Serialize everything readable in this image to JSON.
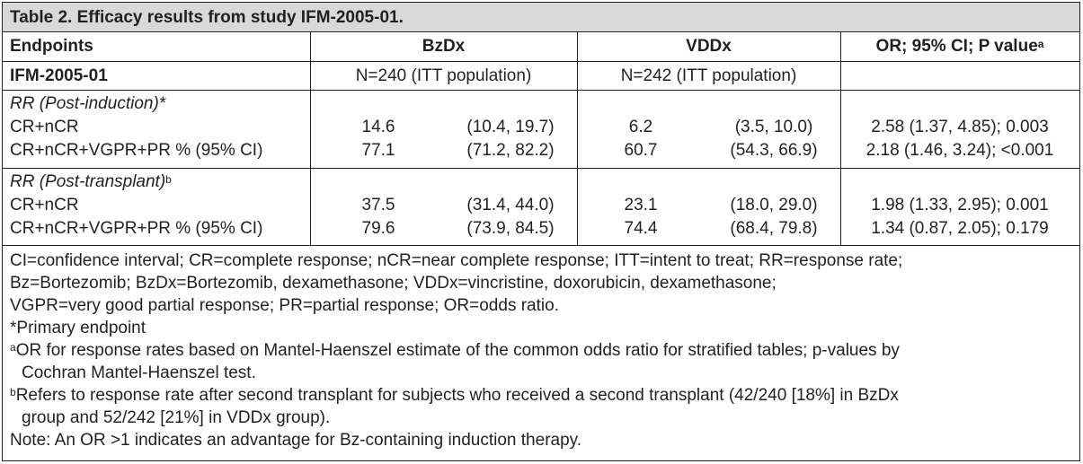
{
  "caption": "Table 2. Efficacy results from study IFM-2005-01.",
  "header": {
    "endpoints": "Endpoints",
    "bzdx": "BzDx",
    "vddx": "VDDx",
    "or": "OR; 95% CI; P value",
    "or_sup": "a"
  },
  "study_row": {
    "label": "IFM-2005-01",
    "bzdx": "N=240 (ITT population)",
    "vddx": "N=242 (ITT population)"
  },
  "sections": [
    {
      "title": "RR (Post-induction)",
      "title_suffix": "*",
      "rows": [
        {
          "label": "CR+nCR",
          "bz_val": "14.6",
          "bz_ci": "(10.4, 19.7)",
          "vd_val": "6.2",
          "vd_ci": "(3.5, 10.0)",
          "or": "2.58 (1.37, 4.85); 0.003"
        },
        {
          "label": "CR+nCR+VGPR+PR % (95% CI)",
          "bz_val": "77.1",
          "bz_ci": "(71.2, 82.2)",
          "vd_val": "60.7",
          "vd_ci": "(54.3, 66.9)",
          "or": "2.18 (1.46, 3.24); <0.001"
        }
      ]
    },
    {
      "title": "RR (Post-transplant)",
      "title_suffix": "b",
      "rows": [
        {
          "label": "CR+nCR",
          "bz_val": "37.5",
          "bz_ci": "(31.4, 44.0)",
          "vd_val": "23.1",
          "vd_ci": "(18.0, 29.0)",
          "or": "1.98 (1.33, 2.95); 0.001"
        },
        {
          "label": "CR+nCR+VGPR+PR % (95% CI)",
          "bz_val": "79.6",
          "bz_ci": "(73.9, 84.5)",
          "vd_val": "74.4",
          "vd_ci": "(68.4, 79.8)",
          "or": "1.34 (0.87, 2.05); 0.179"
        }
      ]
    }
  ],
  "footnotes": {
    "abbrev1": "CI=confidence interval; CR=complete response; nCR=near complete response; ITT=intent to treat; RR=response rate;",
    "abbrev2": "Bz=Bortezomib; BzDx=Bortezomib, dexamethasone; VDDx=vincristine, doxorubicin, dexamethasone;",
    "abbrev3": "VGPR=very good partial response; PR=partial response; OR=odds ratio.",
    "star": "*Primary endpoint",
    "a_mark": "a",
    "a_line1": "OR for response rates based on Mantel-Haenszel estimate of the common odds ratio for stratified tables; p-values by",
    "a_line2": "Cochran Mantel-Haenszel test.",
    "b_mark": "b",
    "b_line1": "Refers to response rate after second transplant for subjects who received a second transplant (42/240 [18%] in BzDx",
    "b_line2": "group and 52/242 [21%] in VDDx group).",
    "note": "Note: An OR >1 indicates an advantage for Bz-containing induction therapy."
  }
}
